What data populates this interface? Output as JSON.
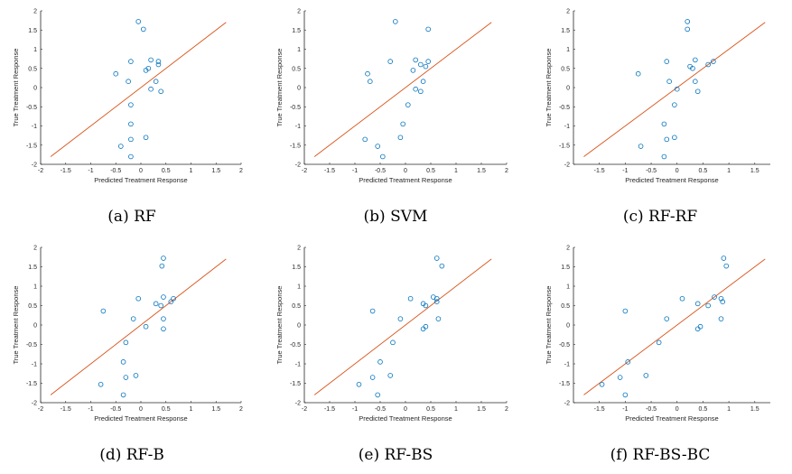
{
  "figure": {
    "marker_color": "#0072BD",
    "line_color": "#D95319",
    "axis_color": "#262626"
  },
  "chart_data": [
    {
      "type": "scatter",
      "caption": "(a) RF",
      "xlabel": "Predicted Treatment Response",
      "ylabel": "True Treatment Response",
      "xlim": [
        -2,
        2
      ],
      "ylim": [
        -2,
        2
      ],
      "xticks": [
        -2,
        -1.5,
        -1,
        -0.5,
        0,
        0.5,
        1,
        1.5,
        2
      ],
      "yticks": [
        -2,
        -1.5,
        -1,
        -0.5,
        0,
        0.5,
        1,
        1.5,
        2
      ],
      "reference_line": [
        [
          -1.8,
          -1.8
        ],
        [
          1.7,
          1.7
        ]
      ],
      "x": [
        -0.05,
        0.05,
        -0.2,
        0.2,
        0.35,
        0.35,
        -0.5,
        -0.25,
        0.1,
        0.15,
        0.3,
        0.2,
        0.4,
        -0.2,
        -0.2,
        -0.2,
        0.1,
        -0.4,
        -0.2
      ],
      "y": [
        1.72,
        1.52,
        0.68,
        0.72,
        0.68,
        0.6,
        0.36,
        0.16,
        0.45,
        0.5,
        0.16,
        -0.04,
        -0.1,
        -0.45,
        -0.95,
        -1.35,
        -1.3,
        -1.53,
        -1.8
      ]
    },
    {
      "type": "scatter",
      "caption": "(b) SVM",
      "xlabel": "Predicted Treatment Response",
      "ylabel": "True Treatment Response",
      "xlim": [
        -2,
        2
      ],
      "ylim": [
        -2,
        2
      ],
      "xticks": [
        -2,
        -1.5,
        -1,
        -0.5,
        0,
        0.5,
        1,
        1.5,
        2
      ],
      "yticks": [
        -2,
        -1.5,
        -1,
        -0.5,
        0,
        0.5,
        1,
        1.5,
        2
      ],
      "reference_line": [
        [
          -1.8,
          -1.8
        ],
        [
          1.7,
          1.7
        ]
      ],
      "x": [
        -0.2,
        0.45,
        -0.3,
        0.2,
        0.3,
        0.45,
        0.4,
        -0.75,
        -0.7,
        0.15,
        0.35,
        0.2,
        0.3,
        0.05,
        -0.05,
        -0.8,
        -0.1,
        -0.55,
        -0.45
      ],
      "y": [
        1.72,
        1.52,
        0.68,
        0.72,
        0.6,
        0.68,
        0.55,
        0.36,
        0.16,
        0.45,
        0.16,
        -0.04,
        -0.1,
        -0.45,
        -0.95,
        -1.35,
        -1.3,
        -1.53,
        -1.8
      ]
    },
    {
      "type": "scatter",
      "caption": "(c) RF-RF",
      "xlabel": "Predicted Treatment Response",
      "ylabel": "True Treatment Response",
      "xlim": [
        -2,
        1.8
      ],
      "ylim": [
        -2,
        2
      ],
      "xticks": [
        -1.5,
        -1,
        -0.5,
        0,
        0.5,
        1,
        1.5
      ],
      "yticks": [
        -2,
        -1.5,
        -1,
        -0.5,
        0,
        0.5,
        1,
        1.5,
        2
      ],
      "reference_line": [
        [
          -1.8,
          -1.8
        ],
        [
          1.7,
          1.7
        ]
      ],
      "x": [
        0.2,
        0.2,
        -0.2,
        0.35,
        0.7,
        0.6,
        0.25,
        -0.75,
        -0.15,
        0.3,
        0.35,
        0.4,
        0,
        -0.05,
        -0.25,
        -0.2,
        -0.05,
        -0.7,
        -0.25
      ],
      "y": [
        1.72,
        1.52,
        0.68,
        0.72,
        0.68,
        0.6,
        0.55,
        0.36,
        0.16,
        0.5,
        0.16,
        -0.1,
        -0.04,
        -0.45,
        -0.95,
        -1.35,
        -1.3,
        -1.53,
        -1.8
      ]
    },
    {
      "type": "scatter",
      "caption": "(d) RF-B",
      "xlabel": "Predicted Treatment Response",
      "ylabel": "True Treatment Response",
      "xlim": [
        -2,
        2
      ],
      "ylim": [
        -2,
        2
      ],
      "xticks": [
        -2,
        -1.5,
        -1,
        -0.5,
        0,
        0.5,
        1,
        1.5,
        2
      ],
      "yticks": [
        -2,
        -1.5,
        -1,
        -0.5,
        0,
        0.5,
        1,
        1.5,
        2
      ],
      "reference_line": [
        [
          -1.8,
          -1.8
        ],
        [
          1.7,
          1.7
        ]
      ],
      "x": [
        0.45,
        0.42,
        -0.05,
        0.45,
        0.65,
        0.6,
        0.3,
        -0.75,
        -0.15,
        0.4,
        0.45,
        0.1,
        0.45,
        -0.3,
        -0.35,
        -0.3,
        -0.1,
        -0.8,
        -0.35
      ],
      "y": [
        1.72,
        1.52,
        0.68,
        0.72,
        0.68,
        0.6,
        0.55,
        0.36,
        0.16,
        0.5,
        0.16,
        -0.04,
        -0.1,
        -0.45,
        -0.95,
        -1.35,
        -1.3,
        -1.53,
        -1.8
      ]
    },
    {
      "type": "scatter",
      "caption": "(e) RF-BS",
      "xlabel": "Predicted Treatment Response",
      "ylabel": "True Treatment Response",
      "xlim": [
        -2,
        2
      ],
      "ylim": [
        -2,
        2
      ],
      "xticks": [
        -2,
        -1.5,
        -1,
        -0.5,
        0,
        0.5,
        1,
        1.5,
        2
      ],
      "yticks": [
        -2,
        -1.5,
        -1,
        -0.5,
        0,
        0.5,
        1,
        1.5,
        2
      ],
      "reference_line": [
        [
          -1.8,
          -1.8
        ],
        [
          1.7,
          1.7
        ]
      ],
      "x": [
        0.62,
        0.72,
        0.1,
        0.55,
        0.62,
        0.62,
        0.35,
        -0.65,
        -0.1,
        0.4,
        0.65,
        0.4,
        0.35,
        -0.25,
        -0.5,
        -0.65,
        -0.3,
        -0.92,
        -0.55
      ],
      "y": [
        1.72,
        1.52,
        0.68,
        0.72,
        0.68,
        0.6,
        0.55,
        0.36,
        0.16,
        0.5,
        0.16,
        -0.04,
        -0.1,
        -0.45,
        -0.95,
        -1.35,
        -1.3,
        -1.53,
        -1.8
      ]
    },
    {
      "type": "scatter",
      "caption": "(f) RF-BS-BC",
      "xlabel": "Predicted Treatment Response",
      "ylabel": "True Treatment Response",
      "xlim": [
        -2,
        1.8
      ],
      "ylim": [
        -2,
        2
      ],
      "xticks": [
        -1.5,
        -1,
        -0.5,
        0,
        0.5,
        1,
        1.5
      ],
      "yticks": [
        -2,
        -1.5,
        -1,
        -0.5,
        0,
        0.5,
        1,
        1.5,
        2
      ],
      "reference_line": [
        [
          -1.8,
          -1.8
        ],
        [
          1.7,
          1.7
        ]
      ],
      "x": [
        0.9,
        0.95,
        0.1,
        0.72,
        0.85,
        0.88,
        0.4,
        -1.0,
        -0.2,
        0.6,
        0.85,
        0.45,
        0.4,
        -0.35,
        -0.95,
        -1.1,
        -0.6,
        -1.45,
        -1.0
      ],
      "y": [
        1.72,
        1.52,
        0.68,
        0.72,
        0.68,
        0.6,
        0.55,
        0.36,
        0.16,
        0.5,
        0.16,
        -0.04,
        -0.1,
        -0.45,
        -0.95,
        -1.35,
        -1.3,
        -1.53,
        -1.8
      ]
    }
  ]
}
